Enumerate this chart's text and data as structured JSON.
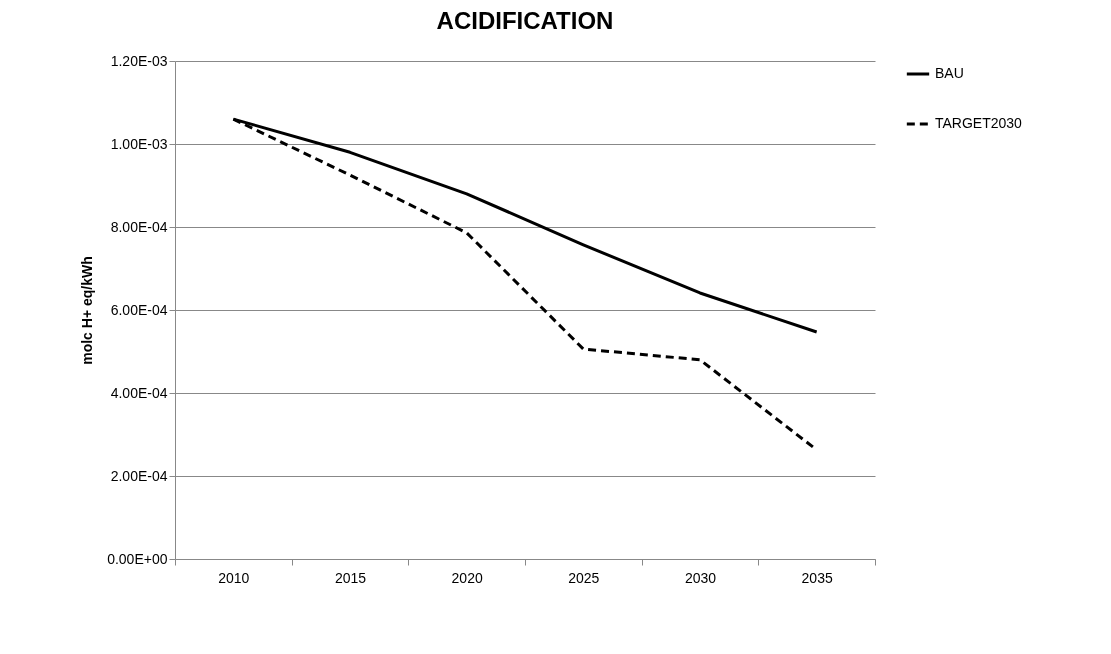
{
  "chart_data": {
    "type": "line",
    "title": "ACIDIFICATION",
    "ylabel": "molc H+ eq/kWh",
    "categories": [
      "2010",
      "2015",
      "2020",
      "2025",
      "2030",
      "2035"
    ],
    "series": [
      {
        "name": "BAU",
        "color": "#000000",
        "line_style": "solid",
        "values": [
          0.00106,
          0.00098,
          0.00088,
          0.000757,
          0.000641,
          0.000547
        ]
      },
      {
        "name": "TARGET2030",
        "color": "#000000",
        "line_style": "dashed",
        "values": [
          0.00106,
          0.000925,
          0.000786,
          0.000506,
          0.00048,
          0.000263
        ]
      }
    ],
    "ylim": [
      0,
      0.0012
    ],
    "yticks": [
      {
        "value": 0,
        "label": "0.00E+00"
      },
      {
        "value": 0.0002,
        "label": "2.00E-04"
      },
      {
        "value": 0.0004,
        "label": "4.00E-04"
      },
      {
        "value": 0.0006,
        "label": "6.00E-04"
      },
      {
        "value": 0.0008,
        "label": "8.00E-04"
      },
      {
        "value": 0.001,
        "label": "1.00E-03"
      },
      {
        "value": 0.0012,
        "label": "1.20E-03"
      }
    ],
    "grid": "y",
    "legend": "right",
    "marker": "none"
  }
}
